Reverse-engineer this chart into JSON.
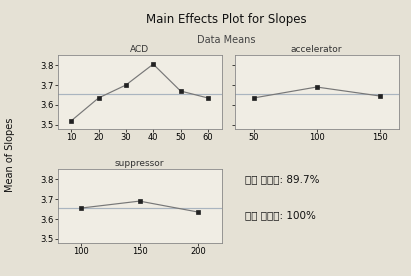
{
  "title": "Main Effects Plot for Slopes",
  "subtitle": "Data Means",
  "ylabel": "Mean of Slopes",
  "background_color": "#e5e1d5",
  "panel_bg": "#f0ede4",
  "grand_mean": 3.655,
  "acd": {
    "label": "ACD",
    "x": [
      10,
      20,
      30,
      40,
      50,
      60
    ],
    "y": [
      3.52,
      3.635,
      3.7,
      3.805,
      3.67,
      3.635
    ],
    "xlim": [
      5,
      65
    ],
    "xticks": [
      10,
      20,
      30,
      40,
      50,
      60
    ],
    "ylim": [
      3.48,
      3.85
    ]
  },
  "accelerator": {
    "label": "accelerator",
    "x": [
      50,
      100,
      150
    ],
    "y": [
      3.635,
      3.69,
      3.645
    ],
    "xlim": [
      35,
      165
    ],
    "xticks": [
      50,
      100,
      150
    ],
    "ylim": [
      3.48,
      3.85
    ]
  },
  "suppressor": {
    "label": "suppressor",
    "x": [
      100,
      150,
      200
    ],
    "y": [
      3.655,
      3.69,
      3.635
    ],
    "xlim": [
      80,
      220
    ],
    "xticks": [
      100,
      150,
      200
    ],
    "ylim": [
      3.48,
      3.85
    ]
  },
  "annotation_line1": "최저 충전율: 89.7%",
  "annotation_line2": "최대 충전율: 100%",
  "line_color": "#777777",
  "mean_line_color": "#aab5c0",
  "marker": "s",
  "marker_size": 3.5,
  "marker_color": "#222222",
  "yticks": [
    3.5,
    3.6,
    3.7,
    3.8
  ],
  "title_fontsize": 8.5,
  "subtitle_fontsize": 7.0,
  "ylabel_fontsize": 7.0,
  "panel_label_fontsize": 6.5,
  "tick_fontsize": 6.0,
  "annot_fontsize": 7.5
}
